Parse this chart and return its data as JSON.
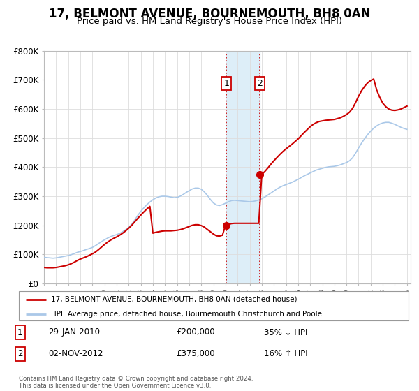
{
  "title": "17, BELMONT AVENUE, BOURNEMOUTH, BH8 0AN",
  "subtitle": "Price paid vs. HM Land Registry's House Price Index (HPI)",
  "title_fontsize": 12,
  "subtitle_fontsize": 9.5,
  "ylim": [
    0,
    800000
  ],
  "yticks": [
    0,
    100000,
    200000,
    300000,
    400000,
    500000,
    600000,
    700000,
    800000
  ],
  "ytick_labels": [
    "£0",
    "£100K",
    "£200K",
    "£300K",
    "£400K",
    "£500K",
    "£600K",
    "£700K",
    "£800K"
  ],
  "hpi_color": "#aac8e8",
  "price_color": "#cc0000",
  "marker_color": "#cc0000",
  "highlight_color": "#ddeef8",
  "transaction1_date": 2010.07,
  "transaction2_date": 2012.84,
  "transaction1_price": 200000,
  "transaction2_price": 375000,
  "legend_label_price": "17, BELMONT AVENUE, BOURNEMOUTH, BH8 0AN (detached house)",
  "legend_label_hpi": "HPI: Average price, detached house, Bournemouth Christchurch and Poole",
  "table_rows": [
    {
      "num": "1",
      "date": "29-JAN-2010",
      "price": "£200,000",
      "hpi": "35% ↓ HPI"
    },
    {
      "num": "2",
      "date": "02-NOV-2012",
      "price": "£375,000",
      "hpi": "16% ↑ HPI"
    }
  ],
  "footer": "Contains HM Land Registry data © Crown copyright and database right 2024.\nThis data is licensed under the Open Government Licence v3.0.",
  "background_color": "#ffffff",
  "grid_color": "#dddddd",
  "hpi_data_x": [
    1995.0,
    1995.25,
    1995.5,
    1995.75,
    1996.0,
    1996.25,
    1996.5,
    1996.75,
    1997.0,
    1997.25,
    1997.5,
    1997.75,
    1998.0,
    1998.25,
    1998.5,
    1998.75,
    1999.0,
    1999.25,
    1999.5,
    1999.75,
    2000.0,
    2000.25,
    2000.5,
    2000.75,
    2001.0,
    2001.25,
    2001.5,
    2001.75,
    2002.0,
    2002.25,
    2002.5,
    2002.75,
    2003.0,
    2003.25,
    2003.5,
    2003.75,
    2004.0,
    2004.25,
    2004.5,
    2004.75,
    2005.0,
    2005.25,
    2005.5,
    2005.75,
    2006.0,
    2006.25,
    2006.5,
    2006.75,
    2007.0,
    2007.25,
    2007.5,
    2007.75,
    2008.0,
    2008.25,
    2008.5,
    2008.75,
    2009.0,
    2009.25,
    2009.5,
    2009.75,
    2010.0,
    2010.25,
    2010.5,
    2010.75,
    2011.0,
    2011.25,
    2011.5,
    2011.75,
    2012.0,
    2012.25,
    2012.5,
    2012.75,
    2013.0,
    2013.25,
    2013.5,
    2013.75,
    2014.0,
    2014.25,
    2014.5,
    2014.75,
    2015.0,
    2015.25,
    2015.5,
    2015.75,
    2016.0,
    2016.25,
    2016.5,
    2016.75,
    2017.0,
    2017.25,
    2017.5,
    2017.75,
    2018.0,
    2018.25,
    2018.5,
    2018.75,
    2019.0,
    2019.25,
    2019.5,
    2019.75,
    2020.0,
    2020.25,
    2020.5,
    2020.75,
    2021.0,
    2021.25,
    2021.5,
    2021.75,
    2022.0,
    2022.25,
    2022.5,
    2022.75,
    2023.0,
    2023.25,
    2023.5,
    2023.75,
    2024.0,
    2024.25,
    2024.5,
    2024.75,
    2025.0
  ],
  "hpi_data_y": [
    90000,
    89000,
    88000,
    87000,
    88000,
    90000,
    92000,
    94000,
    96000,
    99000,
    103000,
    107000,
    110000,
    113000,
    117000,
    120000,
    124000,
    130000,
    137000,
    144000,
    150000,
    156000,
    161000,
    165000,
    168000,
    172000,
    178000,
    185000,
    193000,
    204000,
    218000,
    234000,
    248000,
    260000,
    271000,
    280000,
    288000,
    294000,
    298000,
    300000,
    300000,
    299000,
    297000,
    295000,
    296000,
    300000,
    306000,
    313000,
    319000,
    325000,
    328000,
    328000,
    324000,
    315000,
    303000,
    289000,
    277000,
    270000,
    268000,
    271000,
    276000,
    281000,
    285000,
    286000,
    285000,
    284000,
    283000,
    282000,
    281000,
    282000,
    284000,
    287000,
    291000,
    297000,
    304000,
    311000,
    318000,
    325000,
    331000,
    336000,
    340000,
    344000,
    348000,
    353000,
    358000,
    364000,
    370000,
    375000,
    380000,
    385000,
    390000,
    393000,
    396000,
    399000,
    401000,
    402000,
    403000,
    405000,
    408000,
    412000,
    416000,
    422000,
    432000,
    448000,
    466000,
    483000,
    498000,
    512000,
    524000,
    534000,
    542000,
    548000,
    552000,
    554000,
    554000,
    551000,
    547000,
    542000,
    537000,
    533000,
    530000
  ],
  "price_data_x": [
    1995.0,
    1995.25,
    1995.5,
    1995.75,
    1996.0,
    1996.25,
    1996.5,
    1996.75,
    1997.0,
    1997.25,
    1997.5,
    1997.75,
    1998.0,
    1998.25,
    1998.5,
    1998.75,
    1999.0,
    1999.25,
    1999.5,
    1999.75,
    2000.0,
    2000.25,
    2000.5,
    2000.75,
    2001.0,
    2001.25,
    2001.5,
    2001.75,
    2002.0,
    2002.25,
    2002.5,
    2002.75,
    2003.0,
    2003.25,
    2003.5,
    2003.75,
    2004.0,
    2004.25,
    2004.5,
    2004.75,
    2005.0,
    2005.25,
    2005.5,
    2005.75,
    2006.0,
    2006.25,
    2006.5,
    2006.75,
    2007.0,
    2007.25,
    2007.5,
    2007.75,
    2008.0,
    2008.25,
    2008.5,
    2008.75,
    2009.0,
    2009.25,
    2009.5,
    2009.75,
    2010.0,
    2010.25,
    2010.5,
    2010.75,
    2011.0,
    2011.25,
    2011.5,
    2011.75,
    2012.0,
    2012.25,
    2012.5,
    2012.75,
    2013.0,
    2013.25,
    2013.5,
    2013.75,
    2014.0,
    2014.25,
    2014.5,
    2014.75,
    2015.0,
    2015.25,
    2015.5,
    2015.75,
    2016.0,
    2016.25,
    2016.5,
    2016.75,
    2017.0,
    2017.25,
    2017.5,
    2017.75,
    2018.0,
    2018.25,
    2018.5,
    2018.75,
    2019.0,
    2019.25,
    2019.5,
    2019.75,
    2020.0,
    2020.25,
    2020.5,
    2020.75,
    2021.0,
    2021.25,
    2021.5,
    2021.75,
    2022.0,
    2022.25,
    2022.5,
    2022.75,
    2023.0,
    2023.25,
    2023.5,
    2023.75,
    2024.0,
    2024.25,
    2024.5,
    2024.75,
    2025.0
  ],
  "price_data_y": [
    55000,
    54000,
    54000,
    54000,
    55000,
    57000,
    59000,
    61000,
    64000,
    68000,
    73000,
    79000,
    84000,
    88000,
    92000,
    97000,
    102000,
    108000,
    116000,
    125000,
    134000,
    142000,
    149000,
    155000,
    160000,
    166000,
    173000,
    181000,
    190000,
    200000,
    212000,
    224000,
    235000,
    246000,
    256000,
    265000,
    173000,
    176000,
    178000,
    180000,
    181000,
    181000,
    181000,
    182000,
    183000,
    185000,
    188000,
    192000,
    196000,
    200000,
    202000,
    202000,
    199000,
    194000,
    186000,
    178000,
    170000,
    164000,
    163000,
    166000,
    200000,
    203000,
    206000,
    207000,
    207000,
    207000,
    207000,
    207000,
    207000,
    207000,
    207000,
    207000,
    375000,
    385000,
    397000,
    410000,
    422000,
    433000,
    444000,
    454000,
    463000,
    471000,
    479000,
    488000,
    497000,
    508000,
    519000,
    529000,
    539000,
    547000,
    553000,
    557000,
    559000,
    561000,
    562000,
    563000,
    564000,
    567000,
    570000,
    575000,
    581000,
    589000,
    602000,
    622000,
    644000,
    663000,
    678000,
    690000,
    698000,
    703000,
    665000,
    640000,
    620000,
    608000,
    600000,
    596000,
    595000,
    597000,
    600000,
    605000,
    610000
  ]
}
